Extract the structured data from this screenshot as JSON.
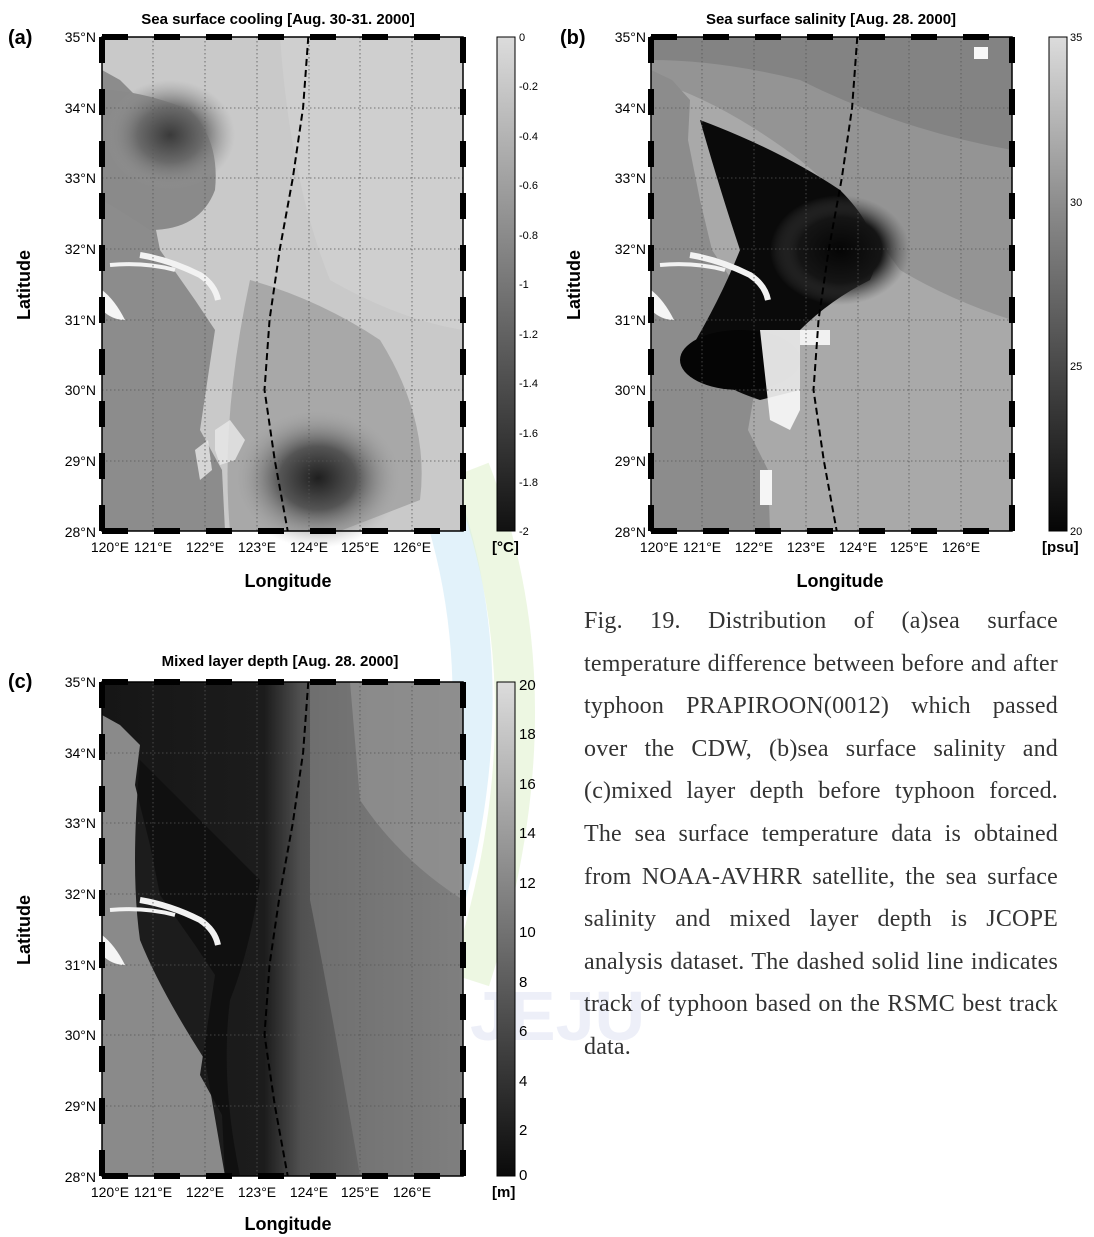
{
  "figure": {
    "panels": [
      {
        "id": "a",
        "letter": "(a)",
        "title": "Sea surface cooling [Aug. 30-31. 2000]",
        "ylabel": "Latitude",
        "xlabel": "Longitude",
        "lat_ticks": [
          "35°N",
          "34°N",
          "33°N",
          "32°N",
          "31°N",
          "30°N",
          "29°N",
          "28°N"
        ],
        "lon_ticks": [
          "120°E",
          "121°E",
          "122°E",
          "123°E",
          "124°E",
          "125°E",
          "126°E"
        ],
        "colorbar": {
          "unit": "[°C]",
          "range": [
            -2,
            0
          ],
          "ticks": [
            "0",
            "-0.2",
            "-0.4",
            "-0.6",
            "-0.8",
            "-1",
            "-1.2",
            "-1.4",
            "-1.6",
            "-1.8",
            "-2"
          ]
        }
      },
      {
        "id": "b",
        "letter": "(b)",
        "title": "Sea surface salinity [Aug. 28. 2000]",
        "ylabel": "Latitude",
        "xlabel": "Longitude",
        "lat_ticks": [
          "35°N",
          "34°N",
          "33°N",
          "32°N",
          "31°N",
          "30°N",
          "29°N",
          "28°N"
        ],
        "lon_ticks": [
          "120°E",
          "121°E",
          "122°E",
          "123°E",
          "124°E",
          "125°E",
          "126°E"
        ],
        "colorbar": {
          "unit": "[psu]",
          "range": [
            20,
            35
          ],
          "ticks": [
            "35",
            "30",
            "25",
            "20"
          ]
        }
      },
      {
        "id": "c",
        "letter": "(c)",
        "title": "Mixed layer depth [Aug. 28. 2000]",
        "ylabel": "Latitude",
        "xlabel": "Longitude",
        "lat_ticks": [
          "35°N",
          "34°N",
          "33°N",
          "32°N",
          "31°N",
          "30°N",
          "29°N",
          "28°N"
        ],
        "lon_ticks": [
          "120°E",
          "121°E",
          "122°E",
          "123°E",
          "124°E",
          "125°E",
          "126°E"
        ],
        "colorbar": {
          "unit": "[m]",
          "range": [
            0,
            20
          ],
          "ticks": [
            "20",
            "18",
            "16",
            "14",
            "12",
            "10",
            "8",
            "6",
            "4",
            "2",
            "0"
          ]
        }
      }
    ],
    "typhoon_track": [
      [
        124.0,
        35.0
      ],
      [
        123.9,
        34.0
      ],
      [
        123.7,
        33.0
      ],
      [
        123.45,
        32.0
      ],
      [
        123.25,
        31.0
      ],
      [
        123.15,
        30.0
      ],
      [
        123.35,
        29.0
      ],
      [
        123.6,
        28.0
      ]
    ]
  },
  "caption": "Fig. 19. Distribution of (a)sea surface temperature difference between before and after typhoon PRAPIROON(0012) which passed over the CDW, (b)sea surface salinity and (c)mixed layer depth before typhoon forced. The sea surface temperature data is obtained from NOAA-AVHRR satellite, the sea surface salinity and mixed layer depth is JCOPE analysis dataset. The dashed solid line indicates track of typhoon based on the RSMC best track data.",
  "watermark": "JEJU 1952"
}
